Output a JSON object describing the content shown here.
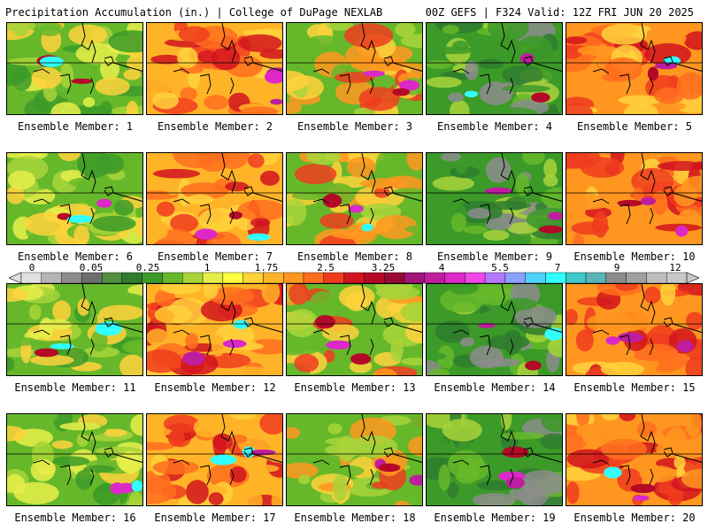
{
  "header": {
    "left_title": "Precipitation Accumulation (in.) | College of DuPage NEXLAB",
    "right_title": "00Z GEFS | F324 Valid: 12Z FRI JUN 20 2025"
  },
  "panels": [
    {
      "label": "Ensemble Member: 1"
    },
    {
      "label": "Ensemble Member: 2"
    },
    {
      "label": "Ensemble Member: 3"
    },
    {
      "label": "Ensemble Member: 4"
    },
    {
      "label": "Ensemble Member: 5"
    },
    {
      "label": "Ensemble Member: 6"
    },
    {
      "label": "Ensemble Member: 7"
    },
    {
      "label": "Ensemble Member: 8"
    },
    {
      "label": "Ensemble Member: 9"
    },
    {
      "label": "Ensemble Member: 10"
    },
    {
      "label": "Ensemble Member: 11"
    },
    {
      "label": "Ensemble Member: 12"
    },
    {
      "label": "Ensemble Member: 13"
    },
    {
      "label": "Ensemble Member: 14"
    },
    {
      "label": "Ensemble Member: 15"
    },
    {
      "label": "Ensemble Member: 16"
    },
    {
      "label": "Ensemble Member: 17"
    },
    {
      "label": "Ensemble Member: 18"
    },
    {
      "label": "Ensemble Member: 19"
    },
    {
      "label": "Ensemble Member: 20"
    }
  ],
  "colorbar": {
    "tick_labels": [
      "0",
      "0.05",
      "0.25",
      "1",
      "1.75",
      "2.5",
      "3.25",
      "4",
      "5.5",
      "7",
      "9",
      "12"
    ],
    "colors": [
      "#e0e0e0",
      "#b4b4b4",
      "#8c8c8c",
      "#6e6e6e",
      "#4f8f3f",
      "#2e7d2e",
      "#3c9a28",
      "#66b82a",
      "#a8d43a",
      "#e6ee4a",
      "#ffff40",
      "#ffd23c",
      "#ffb428",
      "#ff9620",
      "#ff6e1e",
      "#f03c1e",
      "#d2141e",
      "#b40a28",
      "#960a32",
      "#a0147a",
      "#be1e9e",
      "#dc28c8",
      "#f046e6",
      "#b478ff",
      "#8ca0ff",
      "#50d2ff",
      "#32ffff",
      "#3cc8c8",
      "#5ab4b4",
      "#8c8c8c",
      "#a0a0a0",
      "#bebebe",
      "#c8c8c8"
    ]
  }
}
